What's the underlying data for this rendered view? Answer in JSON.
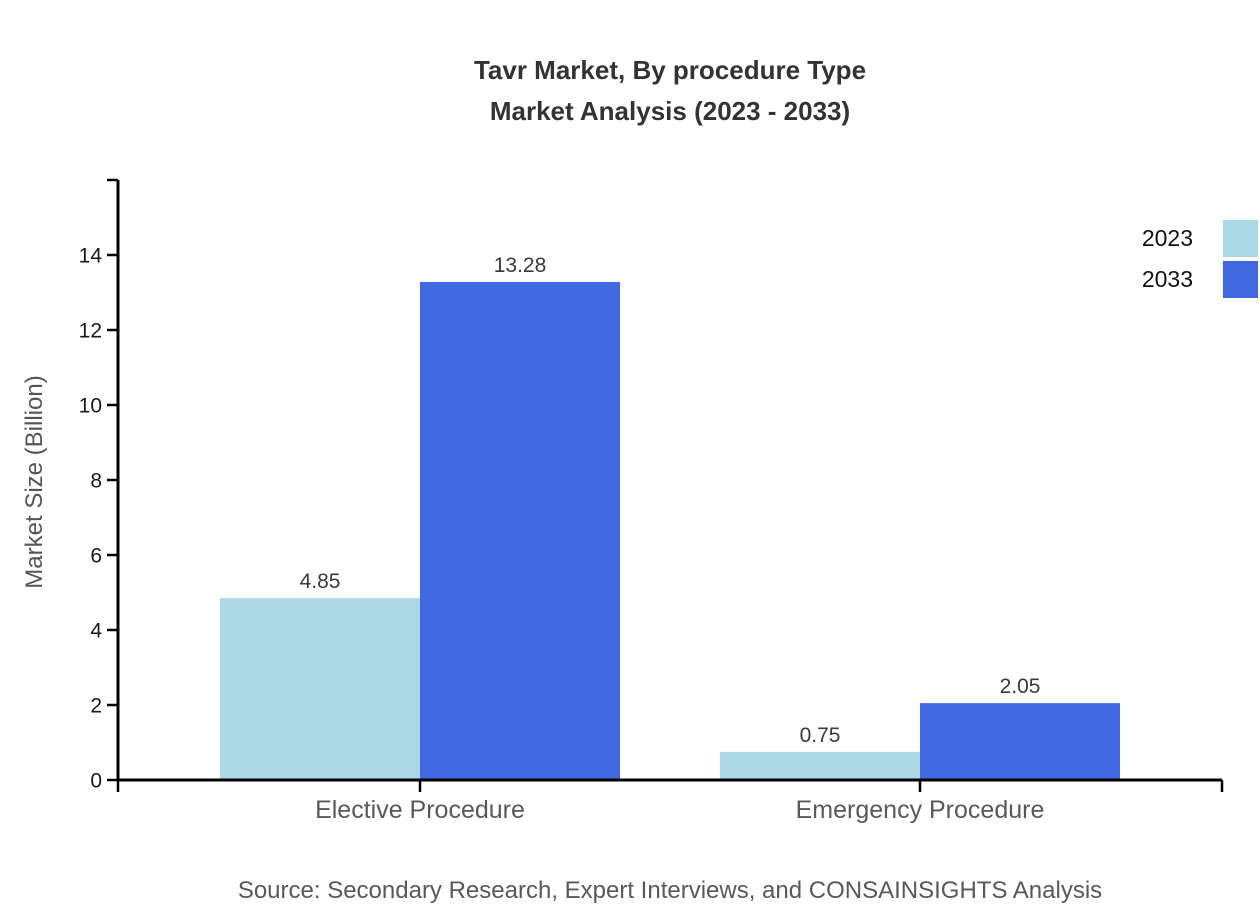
{
  "title": {
    "line1": "Tavr Market, By procedure Type",
    "line2": "Market Analysis (2023 - 2033)"
  },
  "legend": {
    "items": [
      {
        "label": "2023",
        "color": "#ADD8E6"
      },
      {
        "label": "2033",
        "color": "#4169E1"
      }
    ]
  },
  "source": "Source: Secondary Research, Expert Interviews, and CONSAINSIGHTS Analysis",
  "chart_data": {
    "type": "bar",
    "title": "Tavr Market, By procedure Type",
    "subtitle": "Market Analysis (2023 - 2033)",
    "categories": [
      "Elective Procedure",
      "Emergency Procedure"
    ],
    "series": [
      {
        "name": "2023",
        "color": "#ADD8E6",
        "values": [
          4.85,
          0.75
        ]
      },
      {
        "name": "2033",
        "color": "#4169E1",
        "values": [
          13.28,
          2.05
        ]
      }
    ],
    "value_labels": [
      [
        "4.85",
        "0.75"
      ],
      [
        "13.28",
        "2.05"
      ]
    ],
    "xlabel": "",
    "ylabel": "Market Size (Billion)",
    "ylim": [
      0,
      16
    ],
    "yticks": [
      0,
      2,
      4,
      6,
      8,
      10,
      12,
      14
    ],
    "grid": false,
    "legend_position": "top-right",
    "axis_color": "#000000",
    "tick_label_color": "#1a1a1a",
    "value_label_color": "#3a3a3a",
    "category_label_color": "#595959"
  }
}
